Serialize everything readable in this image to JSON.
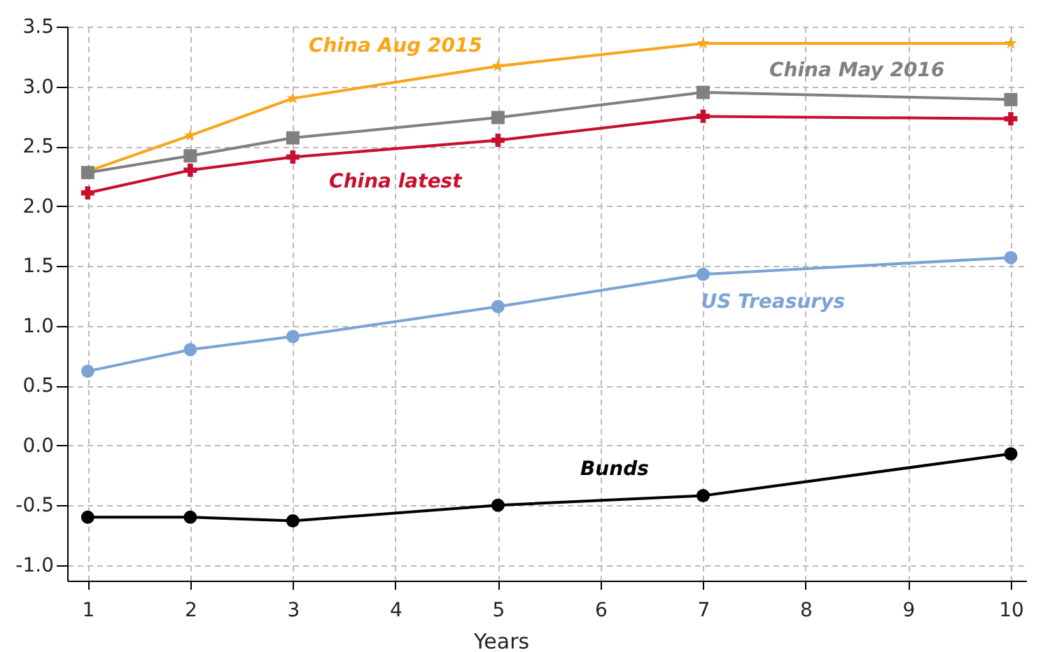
{
  "chart_data": {
    "type": "line",
    "xlabel": "Years",
    "x": [
      1,
      2,
      3,
      5,
      7,
      10
    ],
    "series": [
      {
        "name": "China Aug 2015",
        "color": "#f9a51a",
        "marker": "star",
        "values": [
          2.29,
          2.59,
          2.9,
          3.17,
          3.36,
          3.36
        ]
      },
      {
        "name": "China May 2016",
        "color": "#808080",
        "marker": "square",
        "values": [
          2.28,
          2.42,
          2.57,
          2.74,
          2.95,
          2.89
        ]
      },
      {
        "name": "China latest",
        "color": "#c8102e",
        "marker": "cross",
        "values": [
          2.11,
          2.3,
          2.41,
          2.55,
          2.75,
          2.73
        ]
      },
      {
        "name": "US Treasurys",
        "color": "#7ba3d6",
        "marker": "circle",
        "values": [
          0.62,
          0.8,
          0.91,
          1.16,
          1.43,
          1.57
        ]
      },
      {
        "name": "Bunds",
        "color": "#000000",
        "marker": "circle",
        "values": [
          -0.6,
          -0.6,
          -0.63,
          -0.5,
          -0.42,
          -0.07
        ]
      }
    ],
    "xlim": [
      0.8,
      10.15
    ],
    "xticks": [
      1,
      2,
      3,
      4,
      5,
      6,
      7,
      8,
      9,
      10
    ],
    "ylim": [
      -1.13,
      3.5
    ],
    "yticks": [
      {
        "value": -1,
        "label": "-1.0"
      },
      -0.5,
      {
        "value": 0,
        "label": "0.0"
      },
      0.5,
      {
        "value": 1,
        "label": "1.0"
      },
      1.5,
      {
        "value": 2,
        "label": "2.0"
      },
      2.5,
      {
        "value": 3,
        "label": "3.0"
      },
      3.5
    ],
    "grid": true,
    "line_style": "solid"
  }
}
